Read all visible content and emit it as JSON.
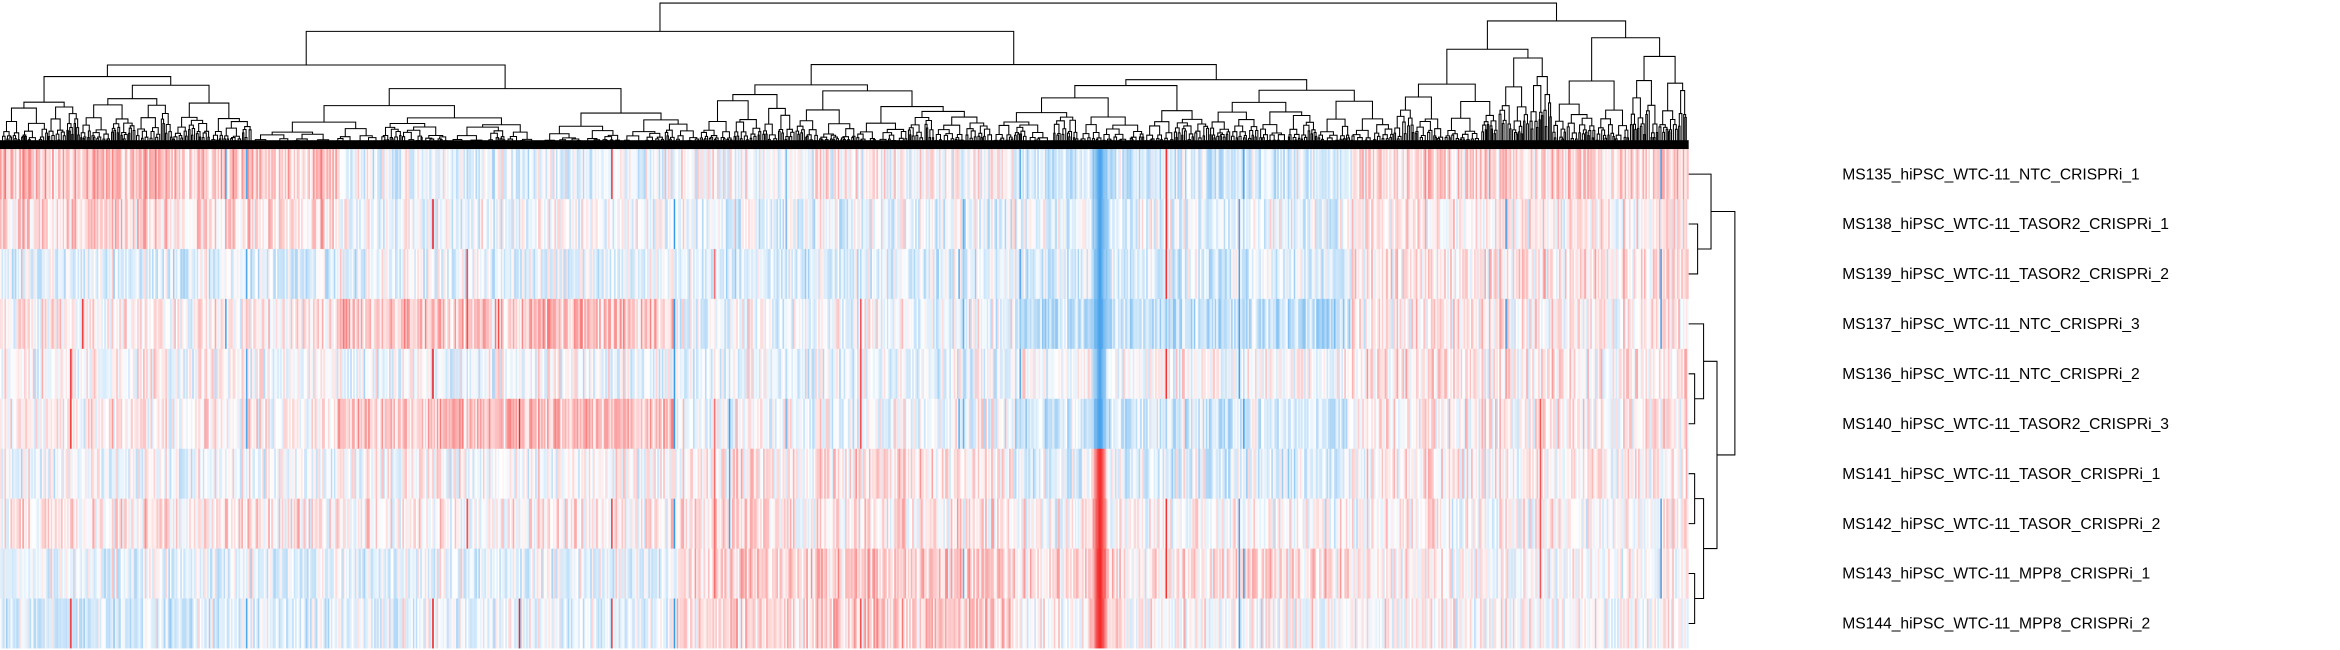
{
  "chart_data": {
    "type": "heatmap",
    "title": "",
    "xlabel": "",
    "ylabel": "",
    "column_dendrogram": true,
    "row_dendrogram": true,
    "row_dendrogram_side": "right",
    "color_scale": {
      "low": "#2b94e8",
      "mid": "#ffffff",
      "high": "#f20f0f"
    },
    "rows": [
      "MS135_hiPSC_WTC-11_NTC_CRISPRi_1",
      "MS138_hiPSC_WTC-11_TASOR2_CRISPRi_1",
      "MS139_hiPSC_WTC-11_TASOR2_CRISPRi_2",
      "MS137_hiPSC_WTC-11_NTC_CRISPRi_3",
      "MS136_hiPSC_WTC-11_NTC_CRISPRi_2",
      "MS140_hiPSC_WTC-11_TASOR2_CRISPRi_3",
      "MS141_hiPSC_WTC-11_TASOR_CRISPRi_1",
      "MS142_hiPSC_WTC-11_TASOR_CRISPRi_2",
      "MS143_hiPSC_WTC-11_MPP8_CRISPRi_1",
      "MS144_hiPSC_WTC-11_MPP8_CRISPRi_2"
    ],
    "row_tree": [
      [
        0,
        [
          1,
          2
        ]
      ],
      [
        [
          3,
          [
            4,
            5
          ]
        ],
        [
          [
            6,
            7
          ],
          [
            8,
            9
          ]
        ]
      ]
    ],
    "features_approx": 3000
  }
}
